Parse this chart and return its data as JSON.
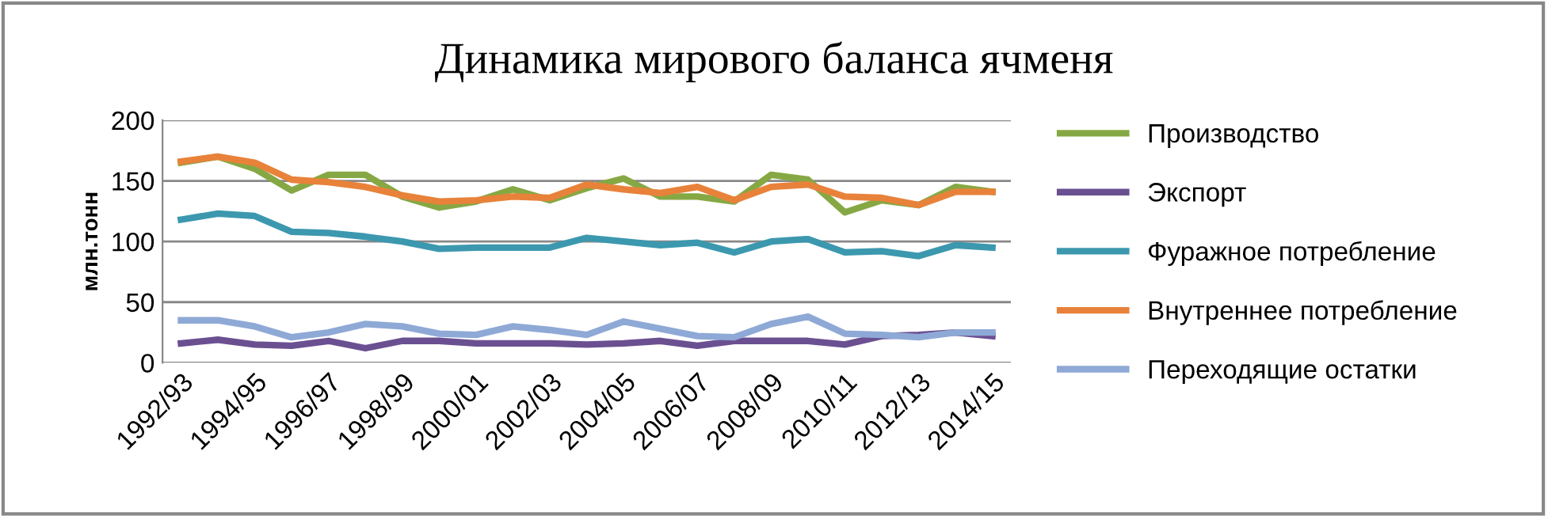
{
  "chart_data": {
    "type": "line",
    "title": "Динамика мирового баланса ячменя",
    "ylabel": "млн.тонн",
    "categories": [
      "1992/93",
      null,
      "1994/95",
      null,
      "1996/97",
      null,
      "1998/99",
      null,
      "2000/01",
      null,
      "2002/03",
      null,
      "2004/05",
      null,
      "2006/07",
      null,
      "2008/09",
      null,
      "2010/11",
      null,
      "2012/13",
      null,
      "2014/15"
    ],
    "series": [
      {
        "name": "Производство",
        "color": "#86a844",
        "values": [
          165,
          170,
          160,
          142,
          155,
          155,
          137,
          128,
          133,
          143,
          134,
          144,
          152,
          137,
          137,
          133,
          155,
          151,
          124,
          134,
          130,
          145,
          141
        ]
      },
      {
        "name": "Экспорт",
        "color": "#6b5091",
        "values": [
          16,
          19,
          15,
          14,
          18,
          12,
          18,
          18,
          16,
          16,
          16,
          15,
          16,
          18,
          14,
          18,
          18,
          18,
          15,
          22,
          23,
          25,
          22
        ]
      },
      {
        "name": "Фуражное потребление",
        "color": "#3c98ae",
        "values": [
          118,
          123,
          121,
          108,
          107,
          104,
          100,
          94,
          95,
          95,
          95,
          103,
          100,
          97,
          99,
          91,
          100,
          102,
          91,
          92,
          88,
          97,
          95
        ]
      },
      {
        "name": "Внутреннее потребление",
        "color": "#e8823a",
        "values": [
          166,
          170,
          165,
          151,
          149,
          145,
          138,
          133,
          134,
          137,
          136,
          147,
          143,
          140,
          145,
          134,
          145,
          147,
          137,
          136,
          130,
          141,
          141
        ]
      },
      {
        "name": "Переходящие остатки",
        "color": "#8ea9d6",
        "values": [
          35,
          35,
          30,
          21,
          25,
          32,
          30,
          24,
          23,
          30,
          27,
          23,
          34,
          28,
          22,
          21,
          32,
          38,
          24,
          23,
          21,
          25,
          25
        ]
      }
    ],
    "ylim": [
      0,
      200
    ],
    "yticks": [
      0,
      50,
      100,
      150,
      200
    ],
    "grid": "y",
    "legend": "right",
    "marker": "none",
    "line_style": "solid"
  }
}
